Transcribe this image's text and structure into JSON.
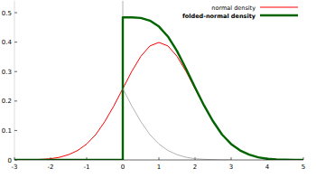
{
  "chart_data": {
    "type": "line",
    "xlim": [
      -3,
      5
    ],
    "xticks": [
      -3,
      -2,
      -1,
      0,
      1,
      2,
      3,
      4,
      5
    ],
    "ylim": [
      0,
      0.54
    ],
    "yticks": [
      0,
      0.1,
      0.2,
      0.3,
      0.4,
      0.5
    ],
    "grid": false,
    "legend": "top-right",
    "series": [
      {
        "name": "normal density",
        "color": "#ff0000",
        "x": [
          -3,
          -2.75,
          -2.5,
          -2.25,
          -2,
          -1.75,
          -1.5,
          -1.25,
          -1,
          -0.75,
          -0.5,
          -0.25,
          0,
          0.25,
          0.5,
          0.75,
          1,
          1.25,
          1.5,
          1.75,
          2,
          2.25,
          2.5,
          2.75,
          3,
          3.25,
          3.5,
          3.75,
          4,
          4.25,
          4.5,
          4.75,
          5
        ],
        "values": [
          0,
          0,
          0.001,
          0.002,
          0.004,
          0.009,
          0.018,
          0.032,
          0.054,
          0.086,
          0.13,
          0.183,
          0.242,
          0.301,
          0.352,
          0.387,
          0.399,
          0.387,
          0.352,
          0.301,
          0.242,
          0.183,
          0.13,
          0.086,
          0.054,
          0.032,
          0.018,
          0.009,
          0.004,
          0.002,
          0.001,
          0,
          0
        ]
      },
      {
        "name": "folded-normal density",
        "color": "#006400",
        "x": [
          -3,
          0,
          0,
          0.25,
          0.5,
          0.75,
          1,
          1.25,
          1.5,
          1.75,
          2,
          2.25,
          2.5,
          2.75,
          3,
          3.25,
          3.5,
          3.75,
          4,
          4.25,
          4.5,
          4.75,
          5
        ],
        "values": [
          0,
          0,
          0.484,
          0.484,
          0.482,
          0.473,
          0.453,
          0.419,
          0.37,
          0.31,
          0.246,
          0.185,
          0.131,
          0.086,
          0.054,
          0.032,
          0.018,
          0.009,
          0.004,
          0.002,
          0.001,
          0,
          0
        ]
      },
      {
        "color": "#a0a0a0",
        "x": [
          0,
          0.25,
          0.5,
          0.75,
          1,
          1.25,
          1.5,
          1.75,
          2,
          2.25,
          2.5,
          2.75,
          3
        ],
        "values": [
          0.242,
          0.183,
          0.13,
          0.086,
          0.054,
          0.032,
          0.018,
          0.009,
          0.004,
          0.002,
          0.001,
          0,
          0
        ]
      }
    ]
  }
}
